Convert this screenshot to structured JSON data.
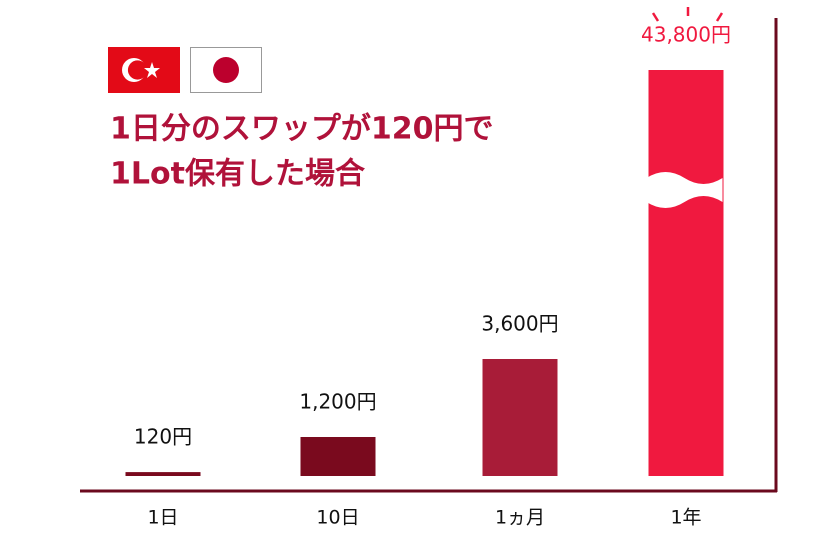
{
  "chart_data": {
    "type": "bar",
    "title": [
      "1日分のスワップが120円で",
      "1Lot保有した場合"
    ],
    "categories": [
      "1日",
      "10日",
      "1ヵ月",
      "1年"
    ],
    "values": [
      120,
      1200,
      3600,
      43800
    ],
    "value_labels": [
      "120円",
      "1,200円",
      "3,600円",
      "43,800円"
    ],
    "colors": [
      "#7a0a1e",
      "#7a0a1e",
      "#a81c38",
      "#f0193f"
    ],
    "ylim": [
      0,
      4000
    ],
    "axis_break": true
  }
}
